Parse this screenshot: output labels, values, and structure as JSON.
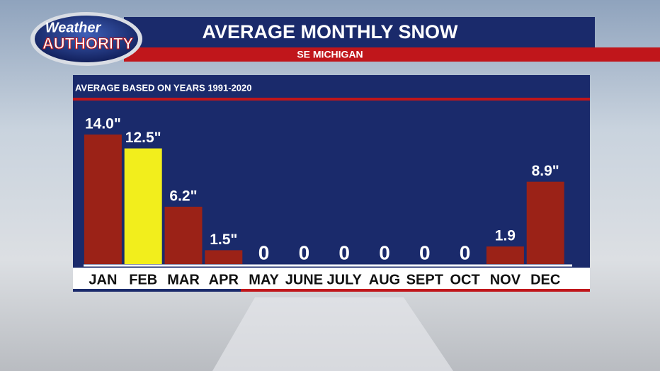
{
  "logo": {
    "line1": "Weather",
    "line2": "AUTHORITY"
  },
  "chart_data": {
    "type": "bar",
    "title": "AVERAGE MONTHLY SNOW",
    "subtitle": "SE MICHIGAN",
    "annotation": "AVERAGE BASED ON YEARS 1991-2020",
    "categories": [
      "JAN",
      "FEB",
      "MAR",
      "APR",
      "MAY",
      "JUNE",
      "JULY",
      "AUG",
      "SEPT",
      "OCT",
      "NOV",
      "DEC"
    ],
    "values": [
      14.0,
      12.5,
      6.2,
      1.5,
      0,
      0,
      0,
      0,
      0,
      0,
      1.9,
      8.9
    ],
    "value_labels": [
      "14.0\"",
      "12.5\"",
      "6.2\"",
      "1.5\"",
      "0",
      "0",
      "0",
      "0",
      "0",
      "0",
      "1.9",
      "8.9\""
    ],
    "colors": [
      "#9b2217",
      "#f2ee1c",
      "#9b2217",
      "#9b2217",
      "#9b2217",
      "#9b2217",
      "#9b2217",
      "#9b2217",
      "#9b2217",
      "#9b2217",
      "#9b2217",
      "#9b2217"
    ]
  }
}
